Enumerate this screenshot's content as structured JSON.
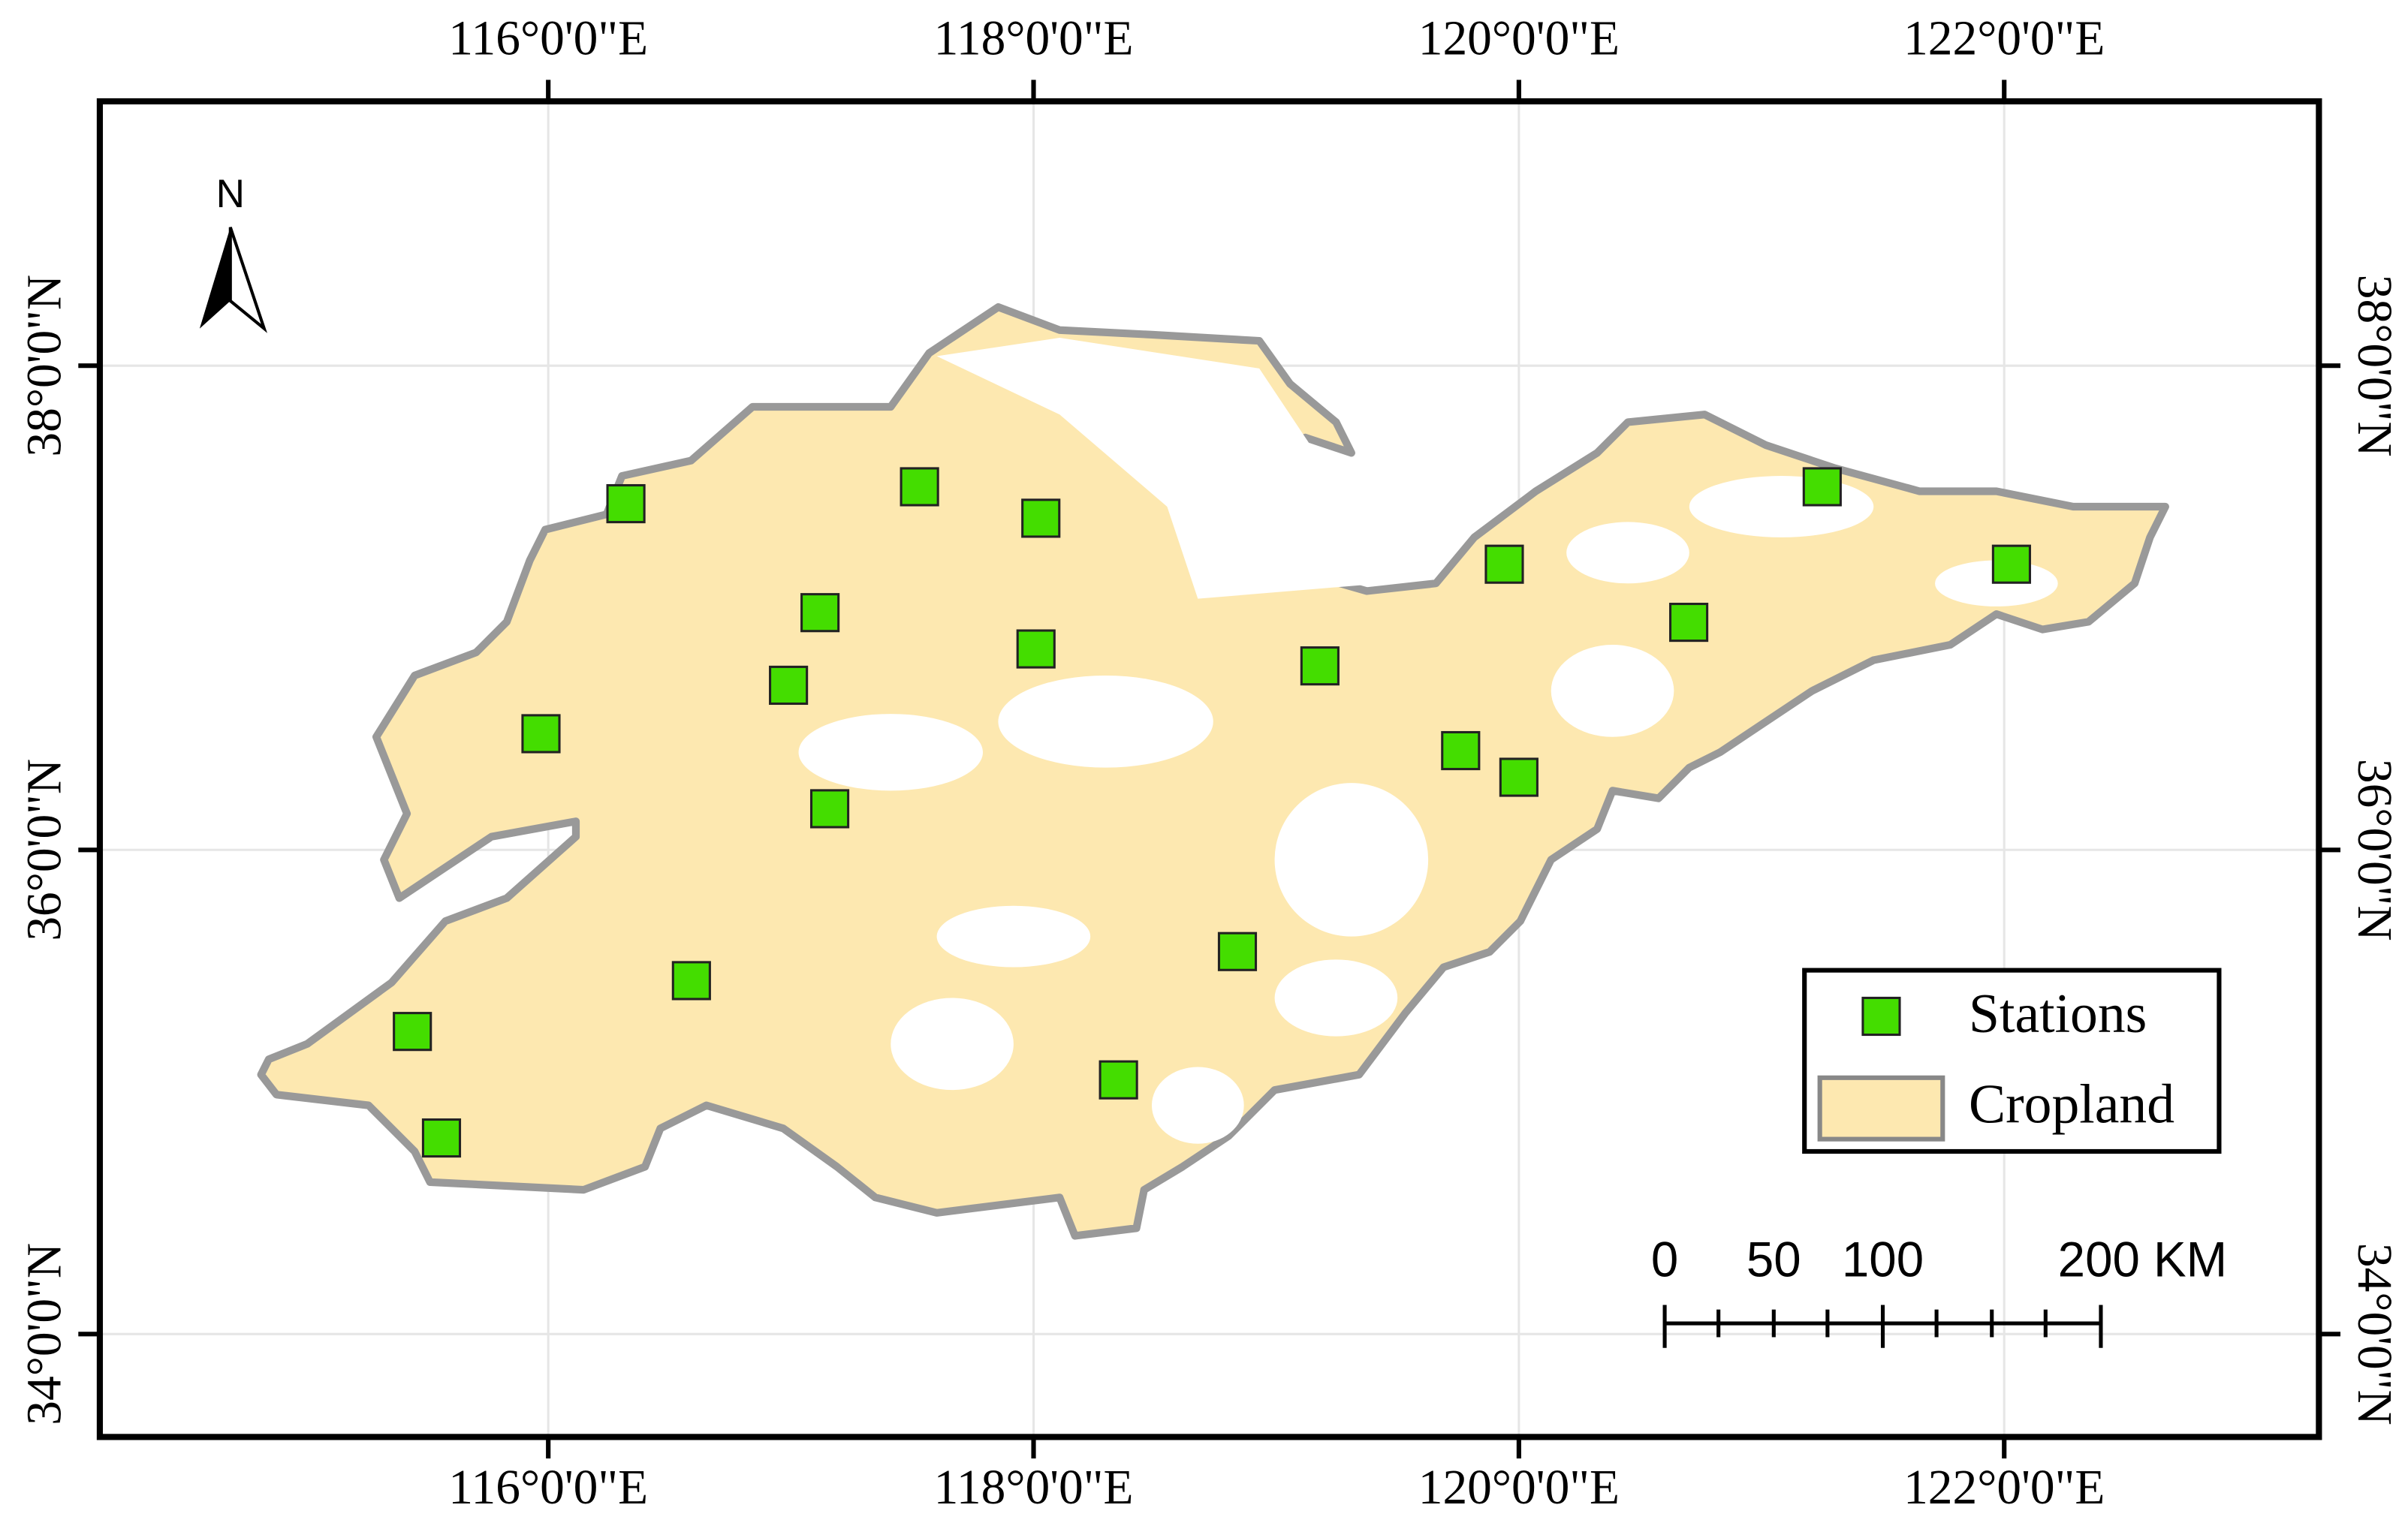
{
  "map": {
    "xlim": [
      114.152,
      123.297
    ],
    "ylim": [
      33.575,
      39.092
    ],
    "grid": true,
    "xticks": [
      {
        "value": 116,
        "label": "116°0'0\"E"
      },
      {
        "value": 118,
        "label": "118°0'0\"E"
      },
      {
        "value": 120,
        "label": "120°0'0\"E"
      },
      {
        "value": 122,
        "label": "122°0'0\"E"
      }
    ],
    "yticks": [
      {
        "value": 34,
        "label": "34°0'0\"N"
      },
      {
        "value": 36,
        "label": "36°0'0\"N"
      },
      {
        "value": 38,
        "label": "38°0'0\"N"
      }
    ],
    "stations": {
      "name": "Stations",
      "color": "#44dd00",
      "lon": [
        116.32,
        117.53,
        118.03,
        117.12,
        118.01,
        116.99,
        115.97,
        117.16,
        119.18,
        119.94,
        121.25,
        122.03,
        120.7,
        119.76,
        120.0,
        118.84,
        116.59,
        115.44,
        115.56,
        118.35
      ],
      "lat": [
        37.43,
        37.5,
        37.37,
        36.98,
        36.83,
        36.68,
        36.48,
        36.17,
        36.76,
        37.18,
        37.5,
        37.18,
        36.94,
        36.41,
        36.3,
        35.58,
        35.46,
        35.25,
        34.81,
        35.05
      ]
    },
    "cropland": {
      "name": "Cropland",
      "color": "#fde8b0"
    },
    "north": "N",
    "scale_bar": [
      "0",
      "50",
      "100",
      "200 KM"
    ]
  }
}
